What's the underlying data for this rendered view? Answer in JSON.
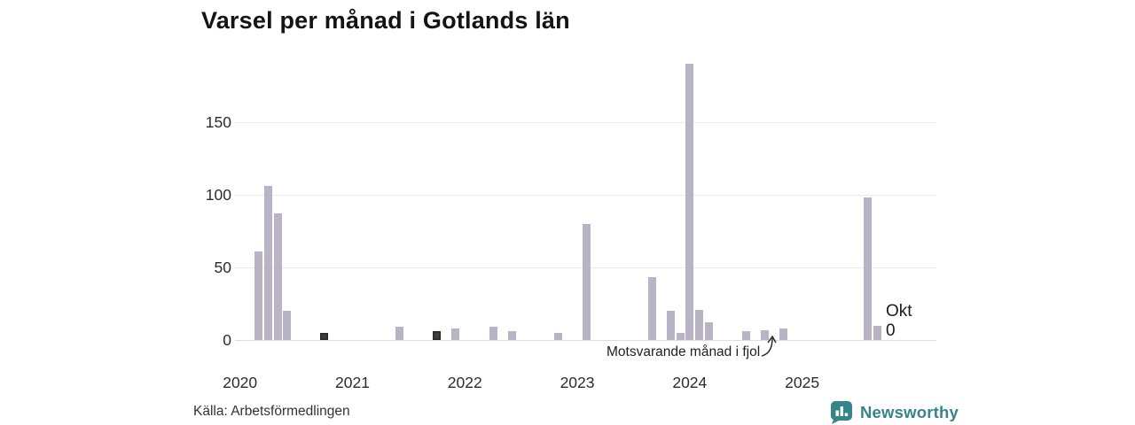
{
  "title": "Varsel per månad i Gotlands län",
  "source": "Källa: Arbetsförmedlingen",
  "branding": {
    "name": "Newsworthy",
    "color": "#35838b"
  },
  "annotation": {
    "text": "Motsvarande månad i fjol",
    "points_to": "2024-10"
  },
  "last_label": {
    "month": "Okt",
    "value": "0"
  },
  "colors": {
    "bar": "#b8b4c6",
    "bar_highlight": "#3d3c3f",
    "bar_highlight_border": "#292929",
    "grid": "#e9e9ee",
    "text": "#2b2b2b"
  },
  "chart_data": {
    "type": "bar",
    "title": "Varsel per månad i Gotlands län",
    "xlabel": "",
    "ylabel": "",
    "x_range": [
      "2020-01",
      "2025-10"
    ],
    "ylim": [
      0,
      200
    ],
    "y_ticks": [
      0,
      50,
      100,
      150
    ],
    "year_ticks": [
      2020,
      2021,
      2022,
      2023,
      2024,
      2025
    ],
    "legend": "none",
    "grid": "horizontal",
    "highlight_meaning": "Motsvarande månad i fjol (oktober föregående år)",
    "points": [
      {
        "month": "2020-03",
        "value": 61
      },
      {
        "month": "2020-04",
        "value": 106
      },
      {
        "month": "2020-05",
        "value": 87
      },
      {
        "month": "2020-06",
        "value": 20
      },
      {
        "month": "2020-10",
        "value": 5,
        "highlight": true
      },
      {
        "month": "2021-06",
        "value": 9
      },
      {
        "month": "2021-10",
        "value": 6,
        "highlight": true
      },
      {
        "month": "2021-12",
        "value": 8
      },
      {
        "month": "2022-04",
        "value": 9
      },
      {
        "month": "2022-06",
        "value": 6
      },
      {
        "month": "2022-11",
        "value": 5
      },
      {
        "month": "2023-02",
        "value": 80
      },
      {
        "month": "2023-09",
        "value": 43
      },
      {
        "month": "2023-11",
        "value": 20
      },
      {
        "month": "2023-12",
        "value": 5
      },
      {
        "month": "2024-01",
        "value": 190
      },
      {
        "month": "2024-02",
        "value": 21
      },
      {
        "month": "2024-03",
        "value": 12
      },
      {
        "month": "2024-07",
        "value": 6
      },
      {
        "month": "2024-09",
        "value": 7
      },
      {
        "month": "2024-11",
        "value": 8
      },
      {
        "month": "2025-08",
        "value": 98
      },
      {
        "month": "2025-09",
        "value": 10
      },
      {
        "month": "2025-10",
        "value": 0,
        "highlight": true,
        "label": "Okt"
      }
    ]
  }
}
